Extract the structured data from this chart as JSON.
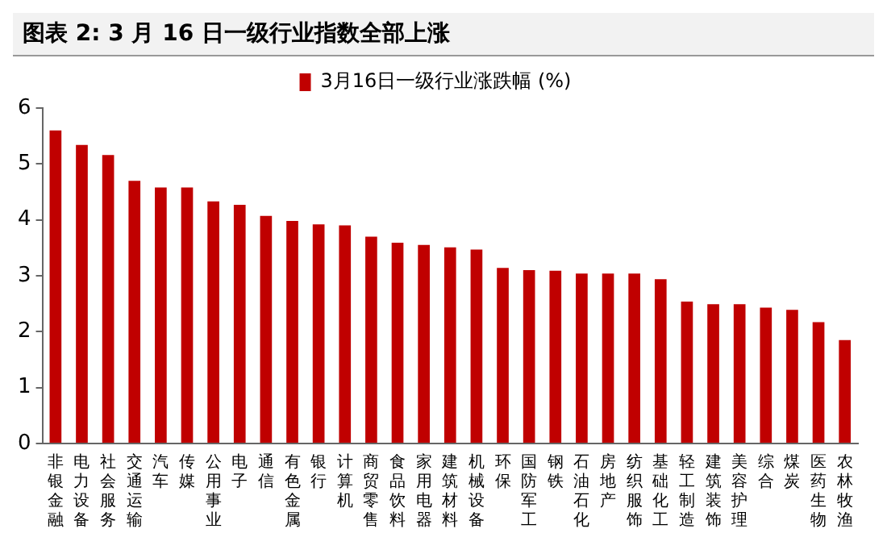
{
  "chart_data": {
    "type": "bar",
    "title": "图表 2: 3 月 16 日一级行业指数全部上涨",
    "categories": [
      "非银金融",
      "电力设备",
      "社会服务",
      "交通运输",
      "汽车",
      "传媒",
      "公用事业",
      "电子",
      "通信",
      "有色金属",
      "银行",
      "计算机",
      "商贸零售",
      "食品饮料",
      "家用电器",
      "建筑材料",
      "机械设备",
      "环保",
      "国防军工",
      "钢铁",
      "石油石化",
      "房地产",
      "纺织服饰",
      "基础化工",
      "轻工制造",
      "建筑装饰",
      "美容护理",
      "综合",
      "煤炭",
      "医药生物",
      "农林牧渔"
    ],
    "series": [
      {
        "name": "3月16日一级行业涨跌幅 (%)",
        "color": "#c00000",
        "values": [
          5.6,
          5.34,
          5.16,
          4.7,
          4.58,
          4.58,
          4.33,
          4.27,
          4.07,
          3.98,
          3.92,
          3.9,
          3.7,
          3.59,
          3.55,
          3.51,
          3.47,
          3.14,
          3.1,
          3.09,
          3.04,
          3.04,
          3.04,
          2.94,
          2.54,
          2.49,
          2.49,
          2.43,
          2.39,
          2.17,
          1.85
        ]
      }
    ],
    "ylim": [
      0,
      6
    ],
    "yticks": [
      0,
      1,
      2,
      3,
      4,
      5,
      6
    ],
    "grid": false,
    "legend": "top"
  }
}
